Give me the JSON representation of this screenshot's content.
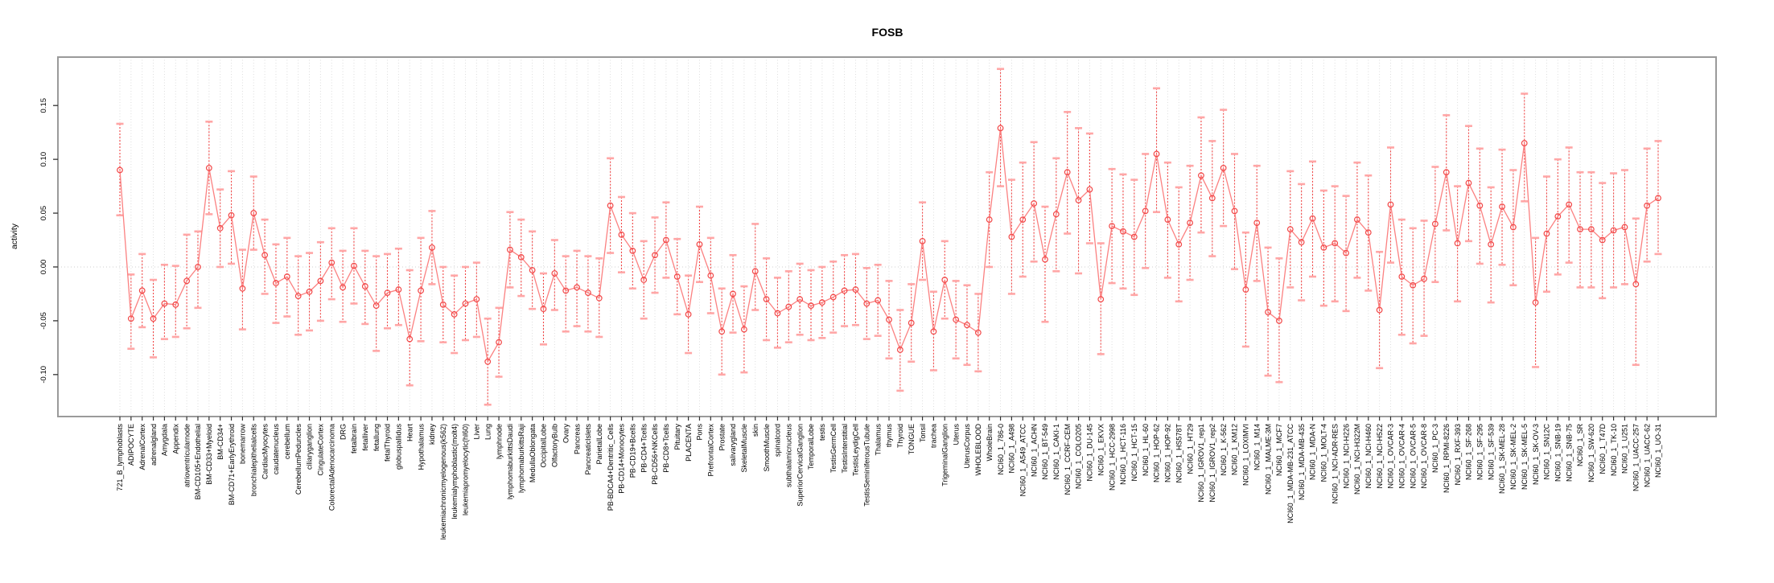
{
  "title": "FOSB",
  "colors": {
    "point": "#f24747",
    "stem": "#f24747",
    "cap": "#ffa6a6",
    "line": "#fb8181",
    "gridline": "#dcdcdc",
    "zero_line": "#cfcfcf",
    "box_border": "#9a9a9a",
    "text": "#000000",
    "background": "#ffffff"
  },
  "chart_data": {
    "type": "line",
    "title": "FOSB",
    "xlabel": "",
    "ylabel": "activity",
    "ylim": [
      -0.139,
      0.195
    ],
    "ytick_values": [
      -0.1,
      -0.05,
      0.0,
      0.05,
      0.1,
      0.15
    ],
    "ytick_labels": [
      "-0.10",
      "-0.05",
      "0.00",
      "0.05",
      "0.10",
      "0.15"
    ],
    "grid": "dotted vertical gridline per category; dotted horizontal line at 0",
    "legend_position": "none",
    "point_style": "open-circle with dashed error-bar stems and light-pink whisker caps",
    "categories": [
      "721_B_lymphoblasts",
      "ADIPOCYTE",
      "AdrenalCortex",
      "adrenalgland",
      "Amygdala",
      "Appendix",
      "atrioventricularnode",
      "BM-CD105+Endothelial",
      "BM-CD33+Myeloid",
      "BM-CD34+",
      "BM-CD71+EarlyErythroid",
      "bonemarrow",
      "bronchialepithelialcells",
      "CardiacMyocytes",
      "caudatenucleus",
      "cerebellum",
      "CerebellumPeduncles",
      "ciliaryganglion",
      "CingulateCortex",
      "ColorectalAdenocarcinoma",
      "DRG",
      "fetalbrain",
      "fetalliver",
      "fetallung",
      "fetalThyroid",
      "globuspallidus",
      "Heart",
      "Hypothalamus",
      "kidney",
      "leukemiachronicmyelogenous(k562)",
      "leukemialymphoblastic(molt4)",
      "leukemiapromyelocytic(hl60)",
      "Liver",
      "Lung",
      "lymphnode",
      "lymphomaburkittsDaudi",
      "lymphomaburkittsRaji",
      "MedullaOblongata",
      "OccipitalLobe",
      "OlfactoryBulb",
      "Ovary",
      "Pancreas",
      "PancreaticIslets",
      "ParietalLobe",
      "PB-BDCA4+Dentritic_Cells",
      "PB-CD14+Monocytes",
      "PB-CD19+Bcells",
      "PB-CD4+Tcells",
      "PB-CD56+NKCells",
      "PB-CD8+Tcells",
      "Pituitary",
      "PLACENTA",
      "Pons",
      "PrefrontalCortex",
      "Prostate",
      "salivarygland",
      "SkeletalMuscle",
      "skin",
      "SmoothMuscle",
      "spinalcord",
      "subthalamicnucleus",
      "SuperiorCervicalGanglion",
      "TemporalLobe",
      "testis",
      "TestisGermCell",
      "TestisInterstitial",
      "TestisLeydigCell",
      "TestisSeminiferousTubule",
      "Thalamus",
      "thymus",
      "Thyroid",
      "TONGUE",
      "Tonsil",
      "trachea",
      "TrigeminalGanglion",
      "Uterus",
      "UterusCorpus",
      "WHOLEBLOOD",
      "WholeBrain",
      "NCI60_1_786-0",
      "NCI60_1_A498",
      "NCI60_1_A549_ATCC",
      "NCI60_1_ACHN",
      "NCI60_1_BT-549",
      "NCI60_1_CAKI-1",
      "NCI60_1_CCRF-CEM",
      "NCI60_1_COLO205",
      "NCI60_1_DU-145",
      "NCI60_1_EKVX",
      "NCI60_1_HCC-2998",
      "NCI60_1_HCT-116",
      "NCI60_1_HCT-15",
      "NCI60_1_HL-60",
      "NCI60_1_HOP-62",
      "NCI60_1_HOP-92",
      "NCI60_1_HS578T",
      "NCI60_1_HT29",
      "NCI60_1_IGROV1_rep1",
      "NCI60_1_IGROV1_rep2",
      "NCI60_1_K-562",
      "NCI60_1_KM12",
      "NCI60_1_LOXIMVI",
      "NCI60_1_M14",
      "NCI60_1_MALME-3M",
      "NCI60_1_MCF7",
      "NCI60_1_MDA-MB-231_ATCC",
      "NCI60_1_MDA-MB-435",
      "NCI60_1_MDA-N",
      "NCI60_1_MOLT-4",
      "NCI60_1_NCI-ADR-RES",
      "NCI60_1_NCI-H226",
      "NCI60_1_NCI-H322M",
      "NCI60_1_NCI-H460",
      "NCI60_1_NCI-H522",
      "NCI60_1_OVCAR-3",
      "NCI60_1_OVCAR-4",
      "NCI60_1_OVCAR-5",
      "NCI60_1_OVCAR-8",
      "NCI60_1_PC-3",
      "NCI60_1_RPMI-8226",
      "NCI60_1_RXF-393",
      "NCI60_1_SF-268",
      "NCI60_1_SF-295",
      "NCI60_1_SF-539",
      "NCI60_1_SK-MEL-28",
      "NCI60_1_SK-MEL-2",
      "NCI60_1_SK-MEL-5",
      "NCI60_1_SK-OV-3",
      "NCI60_1_SN12C",
      "NCI60_1_SNB-19",
      "NCI60_1_SNB-75",
      "NCI60_1_SR",
      "NCI60_1_SW-620",
      "NCI60_1_T47D",
      "NCI60_1_TK-10",
      "NCI60_1_U251",
      "NCI60_1_UACC-257",
      "NCI60_1_UACC-62",
      "NCI60_1_UO-31"
    ],
    "series": [
      {
        "name": "activity",
        "values": [
          0.09,
          -0.048,
          -0.022,
          -0.048,
          -0.034,
          -0.035,
          -0.013,
          0.0,
          0.092,
          0.036,
          0.048,
          -0.02,
          0.05,
          0.011,
          -0.015,
          -0.009,
          -0.027,
          -0.023,
          -0.013,
          0.004,
          -0.019,
          0.001,
          -0.018,
          -0.036,
          -0.024,
          -0.021,
          -0.067,
          -0.022,
          0.018,
          -0.035,
          -0.044,
          -0.034,
          -0.03,
          -0.088,
          -0.07,
          0.016,
          0.009,
          -0.003,
          -0.039,
          -0.006,
          -0.022,
          -0.019,
          -0.024,
          -0.029,
          0.057,
          0.03,
          0.015,
          -0.012,
          0.011,
          0.025,
          -0.009,
          -0.044,
          0.021,
          -0.008,
          -0.06,
          -0.025,
          -0.058,
          -0.004,
          -0.03,
          -0.043,
          -0.037,
          -0.03,
          -0.036,
          -0.033,
          -0.028,
          -0.022,
          -0.021,
          -0.034,
          -0.031,
          -0.049,
          -0.077,
          -0.052,
          0.024,
          -0.06,
          -0.012,
          -0.049,
          -0.054,
          -0.061,
          0.044,
          0.129,
          0.028,
          0.044,
          0.059,
          0.007,
          0.049,
          0.088,
          0.062,
          0.072,
          -0.03,
          0.038,
          0.033,
          0.028,
          0.052,
          0.105,
          0.044,
          0.021,
          0.041,
          0.085,
          0.064,
          0.092,
          0.052,
          -0.021,
          0.041,
          -0.042,
          -0.05,
          0.035,
          0.023,
          0.045,
          0.018,
          0.022,
          0.013,
          0.044,
          0.032,
          -0.04,
          0.058,
          -0.009,
          -0.017,
          -0.011,
          0.04,
          0.088,
          0.022,
          0.078,
          0.057,
          0.021,
          0.056,
          0.037,
          0.115,
          -0.033,
          0.031,
          0.047,
          0.058,
          0.035,
          0.035,
          0.025,
          0.034,
          0.037,
          -0.016,
          0.057,
          0.064
        ],
        "lower": [
          0.048,
          -0.076,
          -0.056,
          -0.084,
          -0.067,
          -0.065,
          -0.057,
          -0.038,
          0.049,
          0.0,
          0.003,
          -0.058,
          0.016,
          -0.025,
          -0.052,
          -0.046,
          -0.063,
          -0.059,
          -0.05,
          -0.03,
          -0.051,
          -0.034,
          -0.053,
          -0.078,
          -0.057,
          -0.054,
          -0.11,
          -0.069,
          -0.016,
          -0.07,
          -0.08,
          -0.068,
          -0.065,
          -0.128,
          -0.102,
          -0.019,
          -0.027,
          -0.039,
          -0.072,
          -0.04,
          -0.06,
          -0.055,
          -0.06,
          -0.065,
          0.013,
          -0.005,
          -0.02,
          -0.048,
          -0.024,
          -0.01,
          -0.044,
          -0.08,
          -0.014,
          -0.043,
          -0.1,
          -0.061,
          -0.098,
          -0.04,
          -0.068,
          -0.075,
          -0.07,
          -0.063,
          -0.068,
          -0.066,
          -0.061,
          -0.055,
          -0.054,
          -0.067,
          -0.064,
          -0.085,
          -0.115,
          -0.088,
          -0.012,
          -0.096,
          -0.048,
          -0.085,
          -0.091,
          -0.097,
          0.0,
          0.075,
          -0.025,
          -0.009,
          0.005,
          -0.051,
          -0.004,
          0.031,
          -0.006,
          0.022,
          -0.081,
          -0.015,
          -0.02,
          -0.026,
          -0.001,
          0.051,
          -0.01,
          -0.032,
          -0.012,
          0.032,
          0.01,
          0.038,
          -0.002,
          -0.074,
          -0.013,
          -0.101,
          -0.107,
          -0.019,
          -0.031,
          -0.009,
          -0.036,
          -0.032,
          -0.041,
          -0.01,
          -0.022,
          -0.094,
          0.004,
          -0.063,
          -0.071,
          -0.064,
          -0.014,
          0.034,
          -0.032,
          0.024,
          0.003,
          -0.033,
          0.002,
          -0.017,
          0.061,
          -0.093,
          -0.023,
          -0.007,
          0.004,
          -0.019,
          -0.019,
          -0.029,
          -0.019,
          -0.016,
          -0.091,
          0.005,
          0.012
        ],
        "upper": [
          0.133,
          -0.007,
          0.012,
          -0.012,
          0.002,
          0.001,
          0.03,
          0.033,
          0.135,
          0.072,
          0.089,
          0.016,
          0.084,
          0.044,
          0.021,
          0.027,
          0.01,
          0.013,
          0.023,
          0.036,
          0.015,
          0.036,
          0.015,
          0.01,
          0.012,
          0.017,
          -0.003,
          0.027,
          0.052,
          0.0,
          -0.008,
          0.0,
          0.004,
          -0.048,
          -0.038,
          0.051,
          0.044,
          0.033,
          -0.006,
          0.025,
          0.01,
          0.015,
          0.01,
          0.008,
          0.101,
          0.065,
          0.05,
          0.024,
          0.046,
          0.06,
          0.026,
          -0.008,
          0.056,
          0.027,
          -0.02,
          0.011,
          -0.018,
          0.04,
          0.008,
          -0.01,
          -0.004,
          0.003,
          -0.003,
          0.0,
          0.005,
          0.011,
          0.012,
          -0.001,
          0.002,
          -0.013,
          -0.04,
          -0.016,
          0.06,
          -0.023,
          0.024,
          -0.013,
          -0.017,
          -0.025,
          0.088,
          0.184,
          0.081,
          0.097,
          0.116,
          0.056,
          0.101,
          0.144,
          0.129,
          0.124,
          0.022,
          0.091,
          0.086,
          0.081,
          0.105,
          0.166,
          0.097,
          0.074,
          0.094,
          0.139,
          0.117,
          0.146,
          0.105,
          0.032,
          0.094,
          0.018,
          0.008,
          0.089,
          0.077,
          0.098,
          0.071,
          0.075,
          0.066,
          0.097,
          0.085,
          0.014,
          0.111,
          0.044,
          0.036,
          0.043,
          0.093,
          0.141,
          0.075,
          0.131,
          0.11,
          0.074,
          0.109,
          0.09,
          0.161,
          0.027,
          0.084,
          0.1,
          0.111,
          0.088,
          0.088,
          0.078,
          0.087,
          0.09,
          0.045,
          0.11,
          0.117
        ]
      }
    ]
  }
}
